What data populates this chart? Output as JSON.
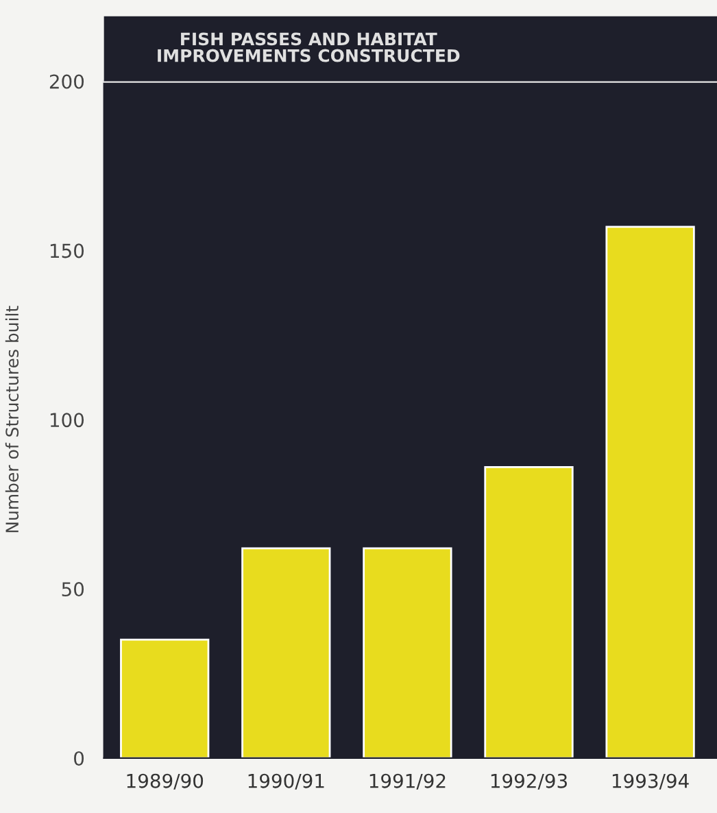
{
  "chart_data": {
    "type": "bar",
    "title": "FISH PASSES AND HABITAT\nIMPROVEMENTS CONSTRUCTED",
    "ylabel": "Number of Structures built",
    "categories": [
      "1989/90",
      "1990/91",
      "1991/92",
      "1992/93",
      "1993/94"
    ],
    "values": [
      35,
      62,
      62,
      86,
      157
    ],
    "color": "#e8dc1e",
    "ylim": [
      0,
      200
    ],
    "yticks": [
      0,
      50,
      100,
      150,
      200
    ],
    "grid": false
  }
}
